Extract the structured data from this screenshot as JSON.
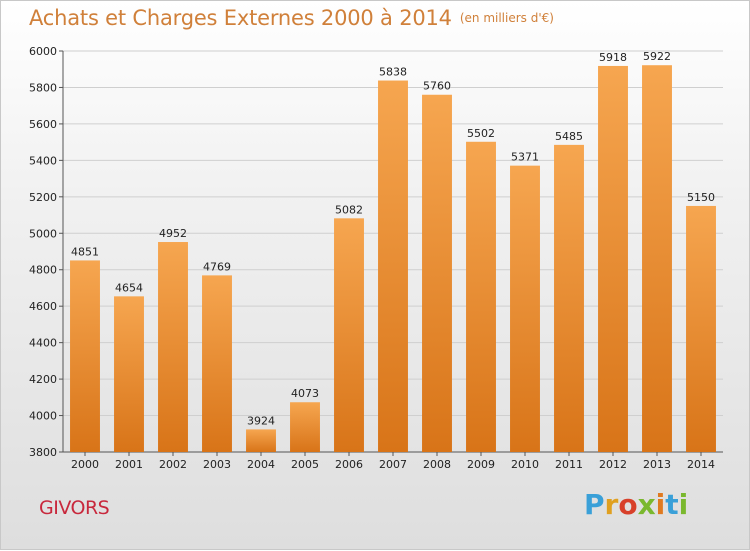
{
  "header": {
    "title": "Achats et Charges Externes 2000 à 2014",
    "unit": "(en milliers d'€)"
  },
  "footer": {
    "city": "GIVORS",
    "brand_letters": [
      {
        "char": "P",
        "color": "#3aa0d8"
      },
      {
        "char": "r",
        "color": "#e0a020"
      },
      {
        "char": "o",
        "color": "#d8402a"
      },
      {
        "char": "x",
        "color": "#7ab82e"
      },
      {
        "char": "i",
        "color": "#e07a20"
      },
      {
        "char": "t",
        "color": "#3aa0d8"
      },
      {
        "char": "i",
        "color": "#7ab82e"
      }
    ]
  },
  "chart_data": {
    "type": "bar",
    "title": "Achats et Charges Externes 2000 à 2014",
    "categories": [
      "2000",
      "2001",
      "2002",
      "2003",
      "2004",
      "2005",
      "2006",
      "2007",
      "2008",
      "2009",
      "2010",
      "2011",
      "2012",
      "2013",
      "2014"
    ],
    "values": [
      4851,
      4654,
      4952,
      4769,
      3924,
      4073,
      5082,
      5838,
      5760,
      5502,
      5371,
      5485,
      5918,
      5922,
      5150
    ],
    "ylim": [
      3800,
      6000
    ],
    "yticks": [
      3800,
      4000,
      4200,
      4400,
      4600,
      4800,
      5000,
      5200,
      5400,
      5600,
      5800,
      6000
    ],
    "grid": true,
    "bar_color_top": "#f6a650",
    "bar_color_bottom": "#d87418"
  }
}
